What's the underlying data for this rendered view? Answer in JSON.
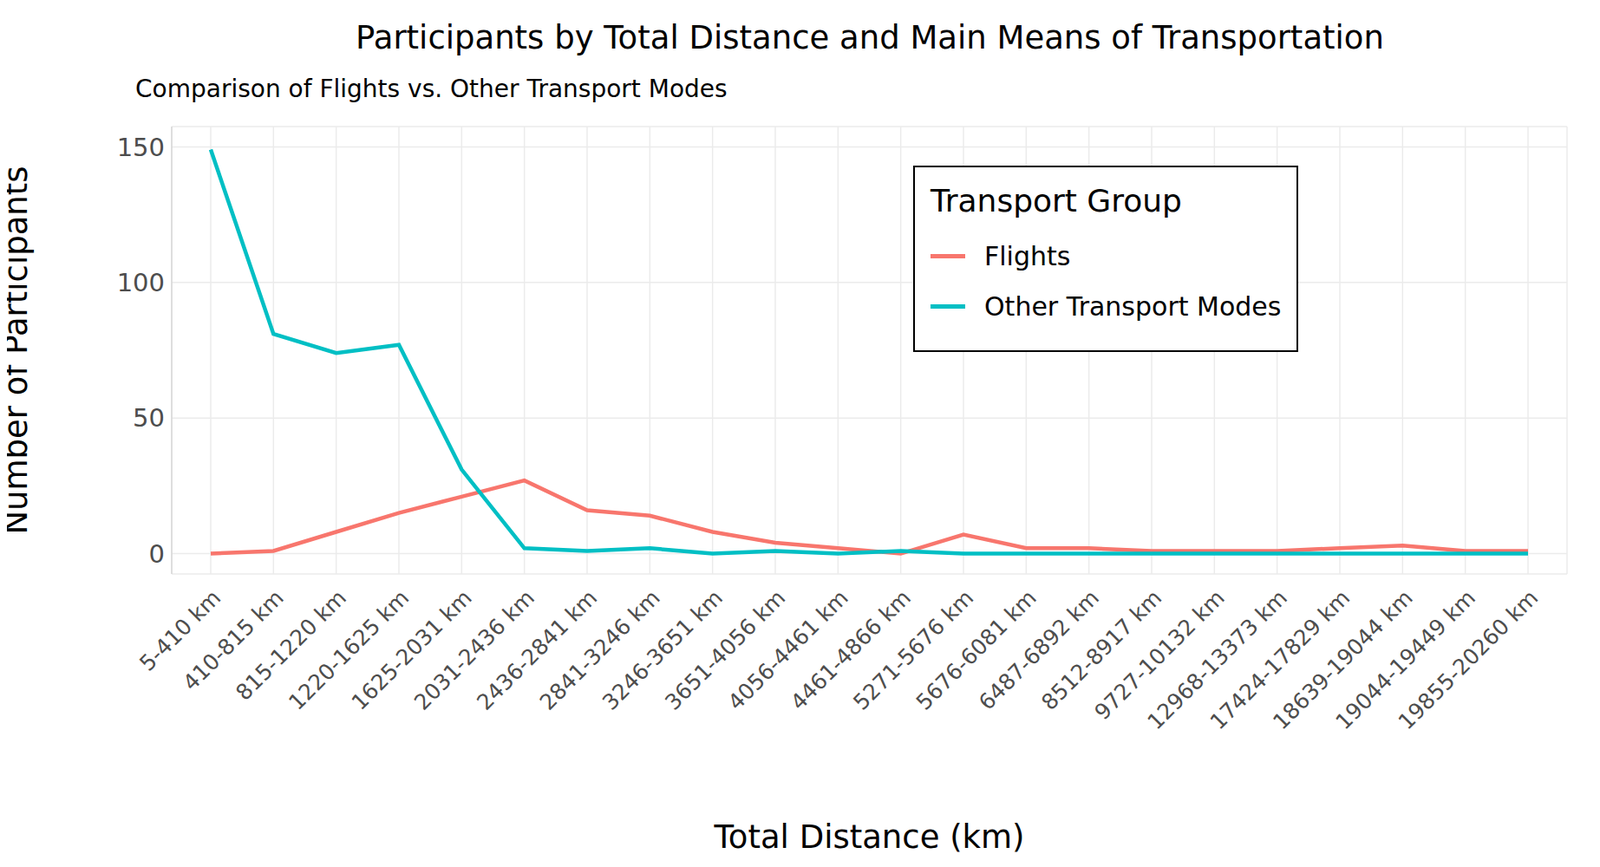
{
  "chart_data": {
    "type": "line",
    "title": "Participants by Total Distance and Main Means of Transportation",
    "subtitle": "Comparison of Flights vs. Other Transport Modes",
    "x_label": "Total Distance (km)",
    "y_label": "Number of Participants",
    "legend_title": "Transport Group",
    "categories": [
      "5-410 km",
      "410-815 km",
      "815-1220 km",
      "1220-1625 km",
      "1625-2031 km",
      "2031-2436 km",
      "2436-2841 km",
      "2841-3246 km",
      "3246-3651 km",
      "3651-4056 km",
      "4056-4461 km",
      "4461-4866 km",
      "5271-5676 km",
      "5676-6081 km",
      "6487-6892 km",
      "8512-8917 km",
      "9727-10132 km",
      "12968-13373 km",
      "17424-17829 km",
      "18639-19044 km",
      "19044-19449 km",
      "19855-20260 km"
    ],
    "series": [
      {
        "name": "Flights",
        "color": "#F8766D",
        "values": [
          0,
          1,
          8,
          15,
          21,
          27,
          16,
          14,
          8,
          4,
          2,
          0,
          7,
          2,
          2,
          1,
          1,
          1,
          2,
          3,
          1,
          1
        ]
      },
      {
        "name": "Other Transport Modes",
        "color": "#00BFC4",
        "values": [
          149,
          81,
          74,
          77,
          31,
          2,
          1,
          2,
          0,
          1,
          0,
          1,
          0,
          0,
          0,
          0,
          0,
          0,
          0,
          0,
          0,
          0
        ]
      }
    ],
    "ylim": [
      -7.5,
      157.5
    ],
    "yticks": [
      0,
      50,
      100,
      150
    ],
    "grid": true,
    "legend": "top right"
  }
}
